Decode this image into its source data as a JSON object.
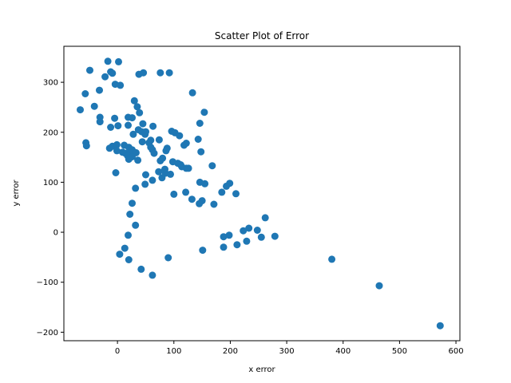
{
  "chart_data": {
    "type": "scatter",
    "title": "Scatter Plot of Error",
    "xlabel": "x error",
    "ylabel": "y error",
    "xlim": [
      -95,
      607
    ],
    "ylim": [
      -217,
      372
    ],
    "xticks": [
      0,
      100,
      200,
      300,
      400,
      500,
      600
    ],
    "yticks": [
      -200,
      -100,
      0,
      100,
      200,
      300
    ],
    "grid": false,
    "marker_color": "#1f77b4",
    "points": [
      [
        -17,
        342
      ],
      [
        2,
        341
      ],
      [
        -49,
        324
      ],
      [
        -12,
        321
      ],
      [
        -9,
        318
      ],
      [
        -22,
        311
      ],
      [
        38,
        316
      ],
      [
        46,
        319
      ],
      [
        76,
        319
      ],
      [
        92,
        319
      ],
      [
        -4,
        296
      ],
      [
        5,
        294
      ],
      [
        -32,
        284
      ],
      [
        -57,
        277
      ],
      [
        133,
        279
      ],
      [
        30,
        263
      ],
      [
        -41,
        252
      ],
      [
        -66,
        245
      ],
      [
        35,
        251
      ],
      [
        39,
        239
      ],
      [
        154,
        240
      ],
      [
        -31,
        230
      ],
      [
        -5,
        228
      ],
      [
        -31,
        221
      ],
      [
        19,
        230
      ],
      [
        26,
        229
      ],
      [
        1,
        213
      ],
      [
        -12,
        210
      ],
      [
        45,
        217
      ],
      [
        146,
        218
      ],
      [
        19,
        214
      ],
      [
        63,
        212
      ],
      [
        37,
        205
      ],
      [
        43,
        201
      ],
      [
        50,
        201
      ],
      [
        96,
        202
      ],
      [
        102,
        199
      ],
      [
        28,
        196
      ],
      [
        49,
        196
      ],
      [
        110,
        193
      ],
      [
        143,
        186
      ],
      [
        -56,
        179
      ],
      [
        -55,
        173
      ],
      [
        44,
        181
      ],
      [
        59,
        184
      ],
      [
        56,
        179
      ],
      [
        74,
        185
      ],
      [
        122,
        178
      ],
      [
        118,
        174
      ],
      [
        -14,
        168
      ],
      [
        -9,
        172
      ],
      [
        -1,
        175
      ],
      [
        12,
        174
      ],
      [
        20,
        170
      ],
      [
        59,
        170
      ],
      [
        26,
        165
      ],
      [
        -1,
        163
      ],
      [
        9,
        160
      ],
      [
        62,
        165
      ],
      [
        88,
        168
      ],
      [
        86,
        163
      ],
      [
        148,
        161
      ],
      [
        14,
        158
      ],
      [
        22,
        158
      ],
      [
        33,
        159
      ],
      [
        65,
        158
      ],
      [
        18,
        153
      ],
      [
        26,
        151
      ],
      [
        20,
        146
      ],
      [
        80,
        148
      ],
      [
        36,
        144
      ],
      [
        76,
        143
      ],
      [
        98,
        141
      ],
      [
        107,
        138
      ],
      [
        112,
        135
      ],
      [
        114,
        131
      ],
      [
        122,
        128
      ],
      [
        126,
        128
      ],
      [
        168,
        133
      ],
      [
        84,
        126
      ],
      [
        85,
        118
      ],
      [
        73,
        121
      ],
      [
        94,
        116
      ],
      [
        50,
        115
      ],
      [
        -3,
        119
      ],
      [
        79,
        109
      ],
      [
        62,
        104
      ],
      [
        49,
        96
      ],
      [
        146,
        100
      ],
      [
        155,
        97
      ],
      [
        199,
        98
      ],
      [
        193,
        92
      ],
      [
        32,
        88
      ],
      [
        121,
        80
      ],
      [
        100,
        76
      ],
      [
        185,
        80
      ],
      [
        210,
        77
      ],
      [
        132,
        66
      ],
      [
        150,
        63
      ],
      [
        145,
        57
      ],
      [
        171,
        56
      ],
      [
        26,
        58
      ],
      [
        22,
        36
      ],
      [
        262,
        29
      ],
      [
        233,
        8
      ],
      [
        248,
        4
      ],
      [
        223,
        3
      ],
      [
        198,
        -6
      ],
      [
        188,
        -9
      ],
      [
        255,
        -10
      ],
      [
        279,
        -8
      ],
      [
        19,
        -6
      ],
      [
        32,
        14
      ],
      [
        229,
        -18
      ],
      [
        212,
        -25
      ],
      [
        188,
        -30
      ],
      [
        13,
        -32
      ],
      [
        151,
        -36
      ],
      [
        4,
        -44
      ],
      [
        90,
        -51
      ],
      [
        380,
        -54
      ],
      [
        20,
        -55
      ],
      [
        42,
        -74
      ],
      [
        62,
        -86
      ],
      [
        464,
        -107
      ],
      [
        572,
        -187
      ]
    ]
  }
}
